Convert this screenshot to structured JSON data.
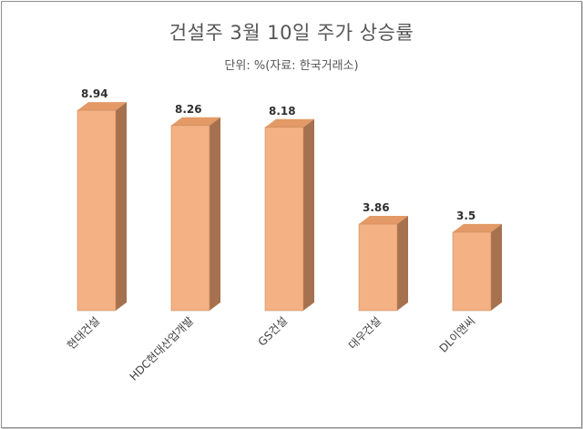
{
  "chart_data": {
    "type": "bar",
    "title": "건설주 3월 10일 주가 상승률",
    "subtitle": "단위: %(자료: 한국거래소)",
    "categories": [
      "현대건설",
      "HDC현대산업개발",
      "GS건설",
      "대우건설",
      "DL이앤씨"
    ],
    "values": [
      8.94,
      8.26,
      8.18,
      3.86,
      3.5
    ],
    "data_labels": [
      "8.94",
      "8.26",
      "8.18",
      "3.86",
      "3.5"
    ],
    "ylim": [
      0,
      10
    ],
    "grid": false,
    "legend": "none",
    "colors": {
      "bar_front": "#f4b183",
      "bar_top": "#e39a66",
      "bar_side": "#a5714e",
      "bar_edge": "#c98a5c"
    }
  }
}
